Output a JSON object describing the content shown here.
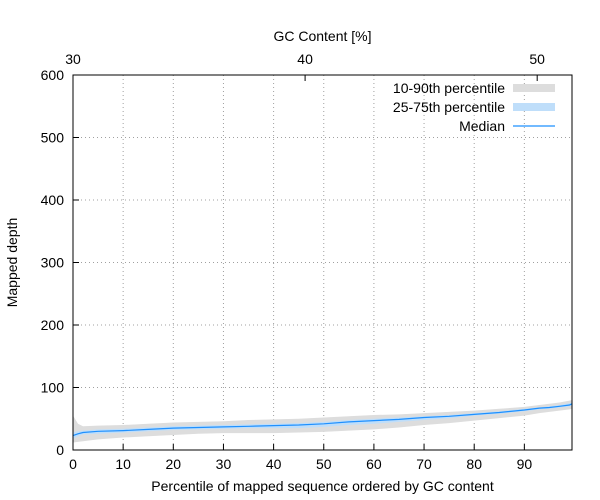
{
  "chart_data": {
    "type": "area",
    "xlabel": "Percentile of mapped sequence ordered by GC content",
    "ylabel": "Mapped depth",
    "x2label": "GC Content [%]",
    "xlim": [
      0,
      99.5
    ],
    "ylim": [
      0,
      600
    ],
    "x2lim": [
      30,
      51.5
    ],
    "xticks": [
      0,
      10,
      20,
      30,
      40,
      50,
      60,
      70,
      80,
      90
    ],
    "yticks": [
      0,
      100,
      200,
      300,
      400,
      500,
      600
    ],
    "x2ticks": [
      30,
      40,
      50
    ],
    "grid": true,
    "legend_position": "top-right",
    "x": [
      0,
      1,
      2,
      5,
      10,
      15,
      20,
      25,
      30,
      35,
      40,
      45,
      50,
      55,
      60,
      65,
      70,
      75,
      80,
      85,
      90,
      93,
      95,
      97,
      99,
      99.5
    ],
    "series": [
      {
        "name": "10-90th percentile",
        "color": "#dddddd",
        "lower": [
          12,
          13,
          14,
          17,
          20,
          22,
          24,
          26,
          27,
          27,
          27,
          28,
          29,
          31,
          33,
          36,
          40,
          43,
          47,
          51,
          55,
          59,
          61,
          63,
          65,
          66
        ],
        "upper": [
          55,
          42,
          38,
          39,
          40,
          42,
          44,
          45,
          46,
          48,
          49,
          50,
          52,
          54,
          56,
          57,
          59,
          61,
          63,
          66,
          69,
          72,
          74,
          76,
          79,
          80
        ]
      },
      {
        "name": "25-75th percentile",
        "color": "#bfdefa",
        "lower": [
          18,
          22,
          25,
          26,
          28,
          30,
          32,
          33,
          34,
          35,
          35,
          35,
          37,
          40,
          42,
          45,
          48,
          51,
          55,
          58,
          62,
          65,
          66,
          68,
          70,
          71
        ],
        "upper": [
          28,
          30,
          31,
          33,
          34,
          36,
          38,
          39,
          40,
          41,
          42,
          43,
          45,
          48,
          50,
          52,
          54,
          56,
          59,
          62,
          66,
          68,
          70,
          72,
          75,
          76
        ]
      },
      {
        "name": "Median",
        "color": "#1e90ff",
        "values": [
          23,
          26,
          28,
          30,
          31,
          33,
          35,
          36,
          37,
          38,
          39,
          40,
          42,
          45,
          47,
          49,
          52,
          54,
          57,
          60,
          64,
          67,
          68,
          70,
          72,
          74
        ]
      }
    ]
  }
}
